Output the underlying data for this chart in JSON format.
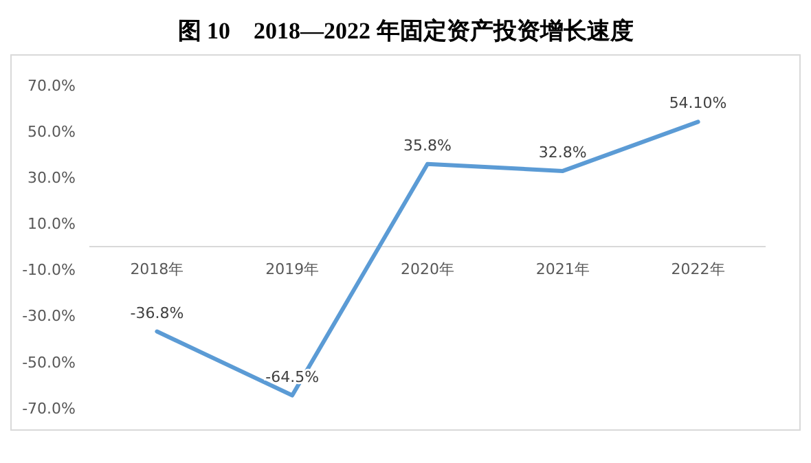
{
  "chart_data": {
    "type": "line",
    "title": "图 10　2018—2022 年固定资产投资增长速度",
    "categories": [
      "2018年",
      "2019年",
      "2020年",
      "2021年",
      "2022年"
    ],
    "series": [
      {
        "color": "#5b9bd5",
        "values": [
          -36.8,
          -64.5,
          35.8,
          32.8,
          54.1
        ],
        "value_labels": [
          "-36.8%",
          "-64.5%",
          "35.8%",
          "32.8%",
          "54.10%"
        ]
      }
    ],
    "ylim": [
      -70,
      70
    ],
    "yticks": [
      {
        "value": 70,
        "label": "70.0%"
      },
      {
        "value": 50,
        "label": "50.0%"
      },
      {
        "value": 30,
        "label": "30.0%"
      },
      {
        "value": 10,
        "label": "10.0%"
      },
      {
        "value": -10,
        "label": "-10.0%"
      },
      {
        "value": -30,
        "label": "-30.0%"
      },
      {
        "value": -50,
        "label": "-50.0%"
      },
      {
        "value": -70,
        "label": "-70.0%"
      }
    ],
    "grid": false,
    "marker": "none",
    "line_style": "solid"
  }
}
